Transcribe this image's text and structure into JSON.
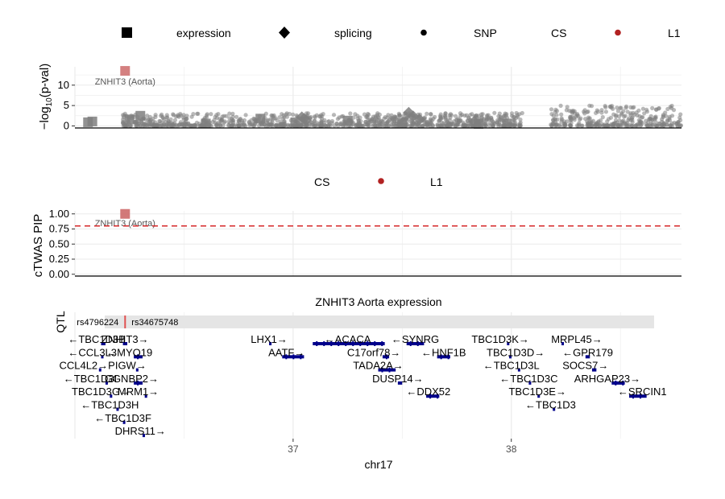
{
  "legend_top": {
    "items": [
      {
        "label": "expression",
        "icon": "square-icon"
      },
      {
        "label": "splicing",
        "icon": "diamond-icon"
      },
      {
        "label": "SNP",
        "icon": "circle-icon"
      }
    ],
    "cs_title": "CS",
    "cs_items": [
      {
        "label": "L1",
        "color": "#b22222"
      }
    ]
  },
  "legend_mid": {
    "cs_title": "CS",
    "cs_items": [
      {
        "label": "L1",
        "color": "#b22222"
      }
    ]
  },
  "colors": {
    "points": "#7f7f7f",
    "highlight": "#cd6a6a",
    "threshold": "#d62728",
    "gene": "#00008b",
    "qtl_bar": "#e5e5e5",
    "qtl_mark": "#e05050"
  },
  "chart_data": [
    {
      "type": "scatter",
      "ylabel": "-log10(p-val)",
      "yticks": [
        0,
        5,
        10
      ],
      "ylim": [
        -0.5,
        14.5
      ],
      "xlim": [
        36.0,
        38.78
      ],
      "gridlines": true,
      "series": [
        {
          "kind": "expression",
          "points": [
            {
              "x": 36.23,
              "y": 13.5,
              "label": "ZNHIT3 (Aorta)",
              "cs": "L1"
            },
            {
              "x": 36.06,
              "y": 0.9
            },
            {
              "x": 36.08,
              "y": 1.1
            },
            {
              "x": 36.25,
              "y": 1.6
            },
            {
              "x": 36.3,
              "y": 2.5
            },
            {
              "x": 36.6,
              "y": 0.6
            },
            {
              "x": 36.85,
              "y": 1.8
            },
            {
              "x": 37.01,
              "y": 0.9
            },
            {
              "x": 37.25,
              "y": 1.3
            },
            {
              "x": 37.5,
              "y": 0.8
            },
            {
              "x": 37.85,
              "y": 0.5
            },
            {
              "x": 37.98,
              "y": 0.6
            }
          ]
        },
        {
          "kind": "splicing",
          "points": [
            {
              "x": 37.04,
              "y": 2.2
            },
            {
              "x": 37.05,
              "y": 1.8
            },
            {
              "x": 37.06,
              "y": 1.4
            },
            {
              "x": 37.53,
              "y": 3.3
            },
            {
              "x": 37.55,
              "y": 2.4
            },
            {
              "x": 37.58,
              "y": 1.6
            },
            {
              "x": 37.83,
              "y": 1.1
            }
          ]
        },
        {
          "kind": "snp",
          "clusters": [
            {
              "x_range": [
                36.22,
                38.05
              ],
              "y_max": 3.2
            },
            {
              "x_range": [
                38.18,
                38.78
              ],
              "y_max": 5.0
            }
          ]
        }
      ]
    },
    {
      "type": "scatter",
      "ylabel": "cTWAS PIP",
      "yticks": [
        "0.00",
        "0.25",
        "0.50",
        "0.75",
        "1.00"
      ],
      "ylim": [
        -0.03,
        1.05
      ],
      "xlim": [
        36.0,
        38.78
      ],
      "threshold": 0.8,
      "series": [
        {
          "kind": "expression",
          "points": [
            {
              "x": 36.23,
              "y": 1.0,
              "label": "ZNHIT3 (Aorta)",
              "cs": "L1"
            }
          ]
        }
      ]
    },
    {
      "type": "table",
      "title": "ZNHIT3 Aorta expression",
      "track_label": "QTL",
      "qtl_variants": [
        {
          "id": "rs4796224",
          "x": 36.23
        },
        {
          "id": "rs34675748",
          "x": 36.23
        }
      ]
    },
    {
      "type": "line",
      "xlabel": "chr17",
      "xticks": [
        37,
        38
      ],
      "xlim": [
        36.0,
        38.78
      ],
      "genes": [
        {
          "name": "←TBC1D3B",
          "start": 36.12,
          "end": 36.14,
          "row": 0,
          "lx": 36.1
        },
        {
          "name": "ZNHIT3→",
          "start": 36.22,
          "end": 36.24,
          "row": 0,
          "lx": 36.23
        },
        {
          "name": "LHX1→",
          "start": 36.89,
          "end": 36.9,
          "row": 0,
          "lx": 36.89
        },
        {
          "name": "←ACACA",
          "start": 37.09,
          "end": 37.42,
          "row": 0,
          "lx": 37.25
        },
        {
          "name": "←SYNRG",
          "start": 37.52,
          "end": 37.6,
          "row": 0,
          "lx": 37.56
        },
        {
          "name": "TBC1D3K→",
          "start": 37.98,
          "end": 37.99,
          "row": 0,
          "lx": 37.95
        },
        {
          "name": "MRPL45→",
          "start": 38.23,
          "end": 38.24,
          "row": 0,
          "lx": 38.3
        },
        {
          "name": "←CCL3L3",
          "start": 36.12,
          "end": 36.13,
          "row": 1,
          "lx": 36.08
        },
        {
          "name": "←MYO19",
          "start": 36.27,
          "end": 36.31,
          "row": 1,
          "lx": 36.25
        },
        {
          "name": "AATF→",
          "start": 36.95,
          "end": 37.05,
          "row": 1,
          "lx": 36.97
        },
        {
          "name": "C17orf78→",
          "start": 37.41,
          "end": 37.44,
          "row": 1,
          "lx": 37.37
        },
        {
          "name": "←HNF1B",
          "start": 37.66,
          "end": 37.72,
          "row": 1,
          "lx": 37.69
        },
        {
          "name": "TBC1D3D→",
          "start": 37.99,
          "end": 38.0,
          "row": 1,
          "lx": 38.02
        },
        {
          "name": "←GPR179",
          "start": 38.34,
          "end": 38.36,
          "row": 1,
          "lx": 38.35
        },
        {
          "name": "CCL4L2→",
          "start": 36.11,
          "end": 36.12,
          "row": 2,
          "lx": 36.04
        },
        {
          "name": "PIGW→",
          "start": 36.28,
          "end": 36.29,
          "row": 2,
          "lx": 36.24
        },
        {
          "name": "TADA2A→",
          "start": 37.39,
          "end": 37.47,
          "row": 2,
          "lx": 37.39
        },
        {
          "name": "←TBC1D3L",
          "start": 38.03,
          "end": 38.04,
          "row": 2,
          "lx": 38.0
        },
        {
          "name": "SOCS7→",
          "start": 38.37,
          "end": 38.39,
          "row": 2,
          "lx": 38.34
        },
        {
          "name": "←TBC1D3I",
          "start": 36.14,
          "end": 36.15,
          "row": 3,
          "lx": 36.07
        },
        {
          "name": "GGNBP2→",
          "start": 36.27,
          "end": 36.31,
          "row": 3,
          "lx": 36.26
        },
        {
          "name": "DUSP14→",
          "start": 37.48,
          "end": 37.5,
          "row": 3,
          "lx": 37.48
        },
        {
          "name": "←TBC1D3C",
          "start": 38.08,
          "end": 38.09,
          "row": 3,
          "lx": 38.08
        },
        {
          "name": "ARHGAP23→",
          "start": 38.46,
          "end": 38.52,
          "row": 3,
          "lx": 38.44
        },
        {
          "name": "TBC1D3G→",
          "start": 36.16,
          "end": 36.17,
          "row": 4,
          "lx": 36.12
        },
        {
          "name": "MRM1→",
          "start": 36.32,
          "end": 36.33,
          "row": 4,
          "lx": 36.29
        },
        {
          "name": "←DDX52",
          "start": 37.61,
          "end": 37.67,
          "row": 4,
          "lx": 37.62
        },
        {
          "name": "TBC1D3E→",
          "start": 38.12,
          "end": 38.13,
          "row": 4,
          "lx": 38.12
        },
        {
          "name": "←SRCIN1",
          "start": 38.54,
          "end": 38.62,
          "row": 4,
          "lx": 38.6
        },
        {
          "name": "←TBC1D3H",
          "start": 36.19,
          "end": 36.2,
          "row": 5,
          "lx": 36.16
        },
        {
          "name": "←TBC1D3",
          "start": 38.19,
          "end": 38.2,
          "row": 5,
          "lx": 38.18
        },
        {
          "name": "←TBC1D3F",
          "start": 36.22,
          "end": 36.23,
          "row": 6,
          "lx": 36.22
        },
        {
          "name": "DHRS11→",
          "start": 36.31,
          "end": 36.32,
          "row": 7,
          "lx": 36.3
        }
      ]
    }
  ]
}
